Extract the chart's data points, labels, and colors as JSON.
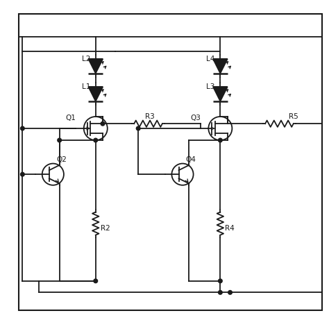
{
  "bg_color": "#ffffff",
  "line_color": "#1a1a1a",
  "line_width": 1.3,
  "fig_size": [
    4.74,
    4.74
  ],
  "dpi": 100,
  "xlim": [
    0,
    10
  ],
  "ylim": [
    0,
    10
  ]
}
